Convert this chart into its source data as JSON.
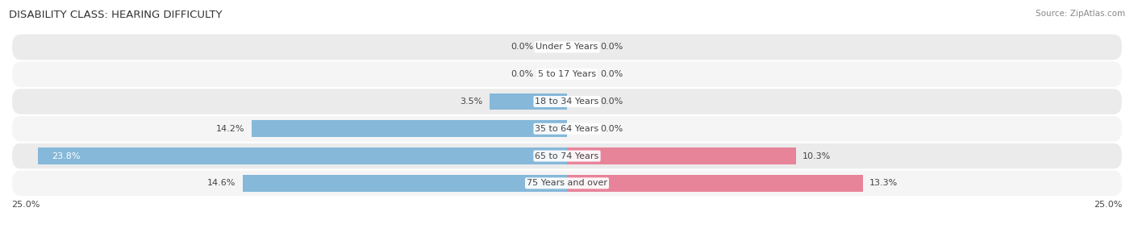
{
  "title": "DISABILITY CLASS: HEARING DIFFICULTY",
  "source": "Source: ZipAtlas.com",
  "categories": [
    "Under 5 Years",
    "5 to 17 Years",
    "18 to 34 Years",
    "35 to 64 Years",
    "65 to 74 Years",
    "75 Years and over"
  ],
  "male_values": [
    0.0,
    0.0,
    3.5,
    14.2,
    23.8,
    14.6
  ],
  "female_values": [
    0.0,
    0.0,
    0.0,
    0.0,
    10.3,
    13.3
  ],
  "max_val": 25.0,
  "male_color": "#85b8d9",
  "female_color": "#e8849a",
  "row_bg_even": "#ebebeb",
  "row_bg_odd": "#f5f5f5",
  "title_fontsize": 9.5,
  "label_fontsize": 8,
  "category_fontsize": 8,
  "source_fontsize": 7.5,
  "axis_label_fontsize": 8,
  "bar_height": 0.62,
  "background_color": "#ffffff"
}
